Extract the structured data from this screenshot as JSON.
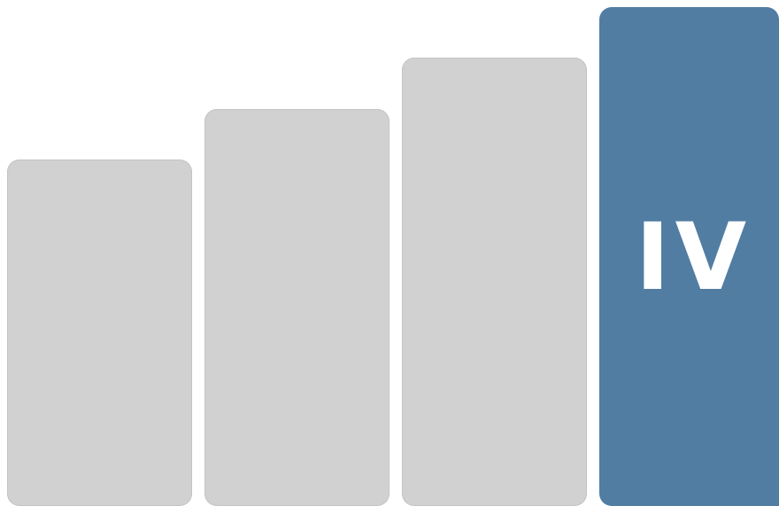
{
  "steps": [
    {
      "label": "",
      "active": false
    },
    {
      "label": "",
      "active": false
    },
    {
      "label": "",
      "active": false
    },
    {
      "label": "IV",
      "active": true
    }
  ],
  "colors": {
    "inactive": "#d1d1d1",
    "active": "#527da3",
    "label": "#ffffff"
  }
}
